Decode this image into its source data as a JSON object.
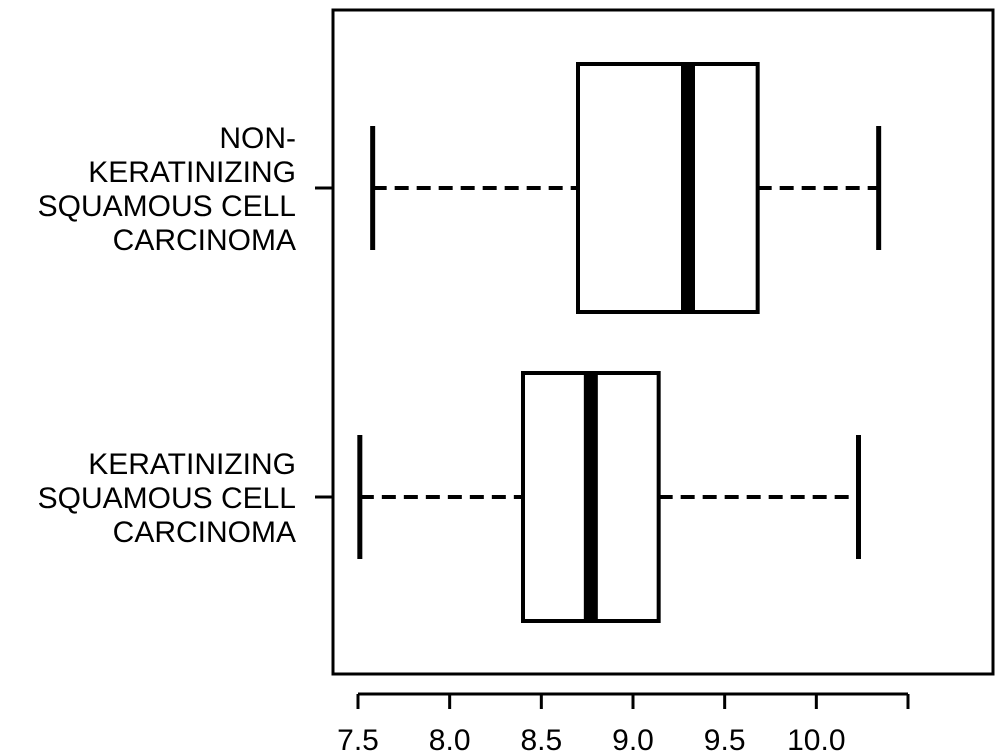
{
  "chart_data": {
    "type": "boxplot",
    "orientation": "horizontal",
    "title": "",
    "xlabel": "",
    "ylabel": "",
    "xlim": [
      7.4,
      10.48
    ],
    "x_ticks": [
      7.5,
      8.0,
      8.5,
      9.0,
      9.5,
      10.0,
      10.5
    ],
    "x_tick_labels": [
      "7.5",
      "8.0",
      "8.5",
      "9.0",
      "9.5",
      "10.0",
      ""
    ],
    "grid": false,
    "legend": "none",
    "line_color": "#000000",
    "box_fill": "#ffffff",
    "categories": [
      {
        "label_lines": [
          "NON-",
          "KERATINIZING",
          "SQUAMOUS CELL",
          "CARCINOMA"
        ],
        "whisker_low": 7.58,
        "q1": 8.7,
        "median": 9.3,
        "q3": 9.68,
        "whisker_high": 10.34
      },
      {
        "label_lines": [
          "KERATINIZING",
          "SQUAMOUS CELL",
          "CARCINOMA"
        ],
        "whisker_low": 7.51,
        "q1": 8.4,
        "median": 8.77,
        "q3": 9.14,
        "whisker_high": 10.23
      }
    ]
  }
}
